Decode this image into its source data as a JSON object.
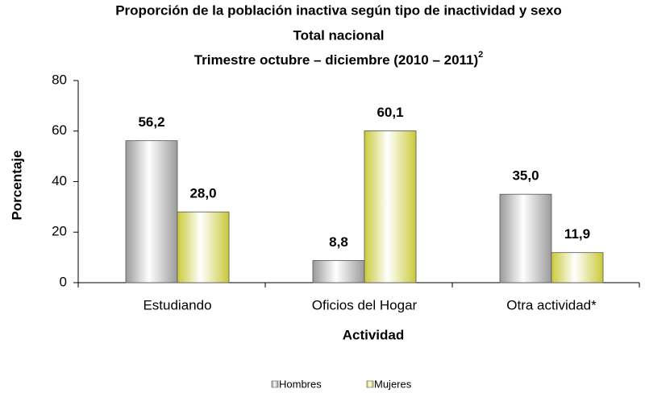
{
  "chart_data": {
    "type": "bar",
    "title": [
      "Proporción de la población inactiva según tipo de inactividad y sexo",
      "Total nacional",
      "Trimestre octubre – diciembre (2010 – 2011)"
    ],
    "title_superscript": "2",
    "categories": [
      "Estudiando",
      "Oficios del Hogar",
      "Otra actividad*"
    ],
    "series": [
      {
        "name": "Hombres",
        "color": "#9a9a9a",
        "values": [
          56.2,
          8.8,
          35.0
        ],
        "value_labels": [
          "56,2",
          "8,8",
          "35,0"
        ]
      },
      {
        "name": "Mujeres",
        "color": "#c9c93a",
        "values": [
          28.0,
          60.1,
          11.9
        ],
        "value_labels": [
          "28,0",
          "60,1",
          "11,9"
        ]
      }
    ],
    "x_label": "Actividad",
    "y_label": "Porcentaje",
    "ylim": [
      0,
      80
    ],
    "yticks": [
      0,
      20,
      40,
      60,
      80
    ],
    "legend": "bottom"
  }
}
